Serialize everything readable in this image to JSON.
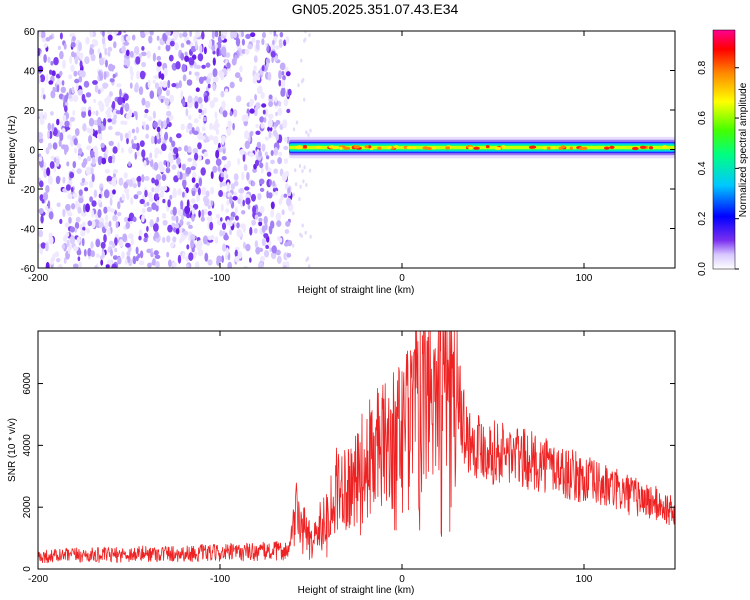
{
  "title": "GN05.2025.351.07.43.E34",
  "colors": {
    "snr_line": "#ee2222",
    "noise_dots": "#7a2ff0",
    "colormap": [
      "#ffffff",
      "#c8b4f8",
      "#6a00ff",
      "#0000ff",
      "#00c8ff",
      "#00ff80",
      "#66ff00",
      "#ffff00",
      "#ff8800",
      "#ff0000",
      "#ff00aa"
    ]
  },
  "chart_data": [
    {
      "type": "heatmap",
      "xlabel": "Height of straight line (km)",
      "ylabel": "Frequency (Hz)",
      "xlim": [
        -200,
        150
      ],
      "ylim": [
        -60,
        60
      ],
      "xticks": [
        -200,
        -100,
        0,
        100
      ],
      "yticks": [
        -60,
        -40,
        -20,
        0,
        20,
        40,
        60
      ],
      "colorbar": {
        "label": "Normalized spectral amplitude",
        "range": [
          0.0,
          0.95
        ],
        "ticks": [
          "0.0",
          "0.2",
          "0.4",
          "0.6",
          "0.8"
        ],
        "tick_values": [
          0.0,
          0.2,
          0.4,
          0.6,
          0.8
        ]
      },
      "noise_region_km": [
        -200,
        -61
      ],
      "signal_band": {
        "x_start_km": -62,
        "x_end_km": 150,
        "center_freq_hz": 1,
        "half_width_hz": 3
      }
    },
    {
      "type": "line",
      "xlabel": "Height of straight line (km)",
      "ylabel": "SNR (10 * v/v)",
      "xlim": [
        -200,
        150
      ],
      "ylim": [
        0,
        7700
      ],
      "xticks": [
        -200,
        -100,
        0,
        100
      ],
      "yticks": [
        0,
        2000,
        4000,
        6000
      ],
      "series": [
        {
          "x": [
            -200,
            -180,
            -160,
            -140,
            -120,
            -100,
            -80,
            -70,
            -62,
            -58,
            -55,
            -50,
            -45,
            -40,
            -35,
            -30,
            -25,
            -20,
            -15,
            -10,
            -5,
            0,
            5,
            10,
            15,
            20,
            25,
            28,
            30,
            32,
            35,
            40,
            50,
            60,
            70,
            80,
            90,
            100,
            110,
            120,
            130,
            140,
            150
          ],
          "values": [
            400,
            450,
            450,
            500,
            500,
            520,
            560,
            580,
            600,
            1800,
            1500,
            900,
            1400,
            2000,
            2700,
            2800,
            3000,
            3400,
            3800,
            3900,
            4100,
            4700,
            5000,
            5300,
            5700,
            6200,
            6400,
            6700,
            6900,
            5600,
            4300,
            4100,
            3800,
            3700,
            3500,
            3400,
            3100,
            2900,
            2700,
            2500,
            2300,
            2100,
            1800
          ]
        }
      ]
    }
  ]
}
